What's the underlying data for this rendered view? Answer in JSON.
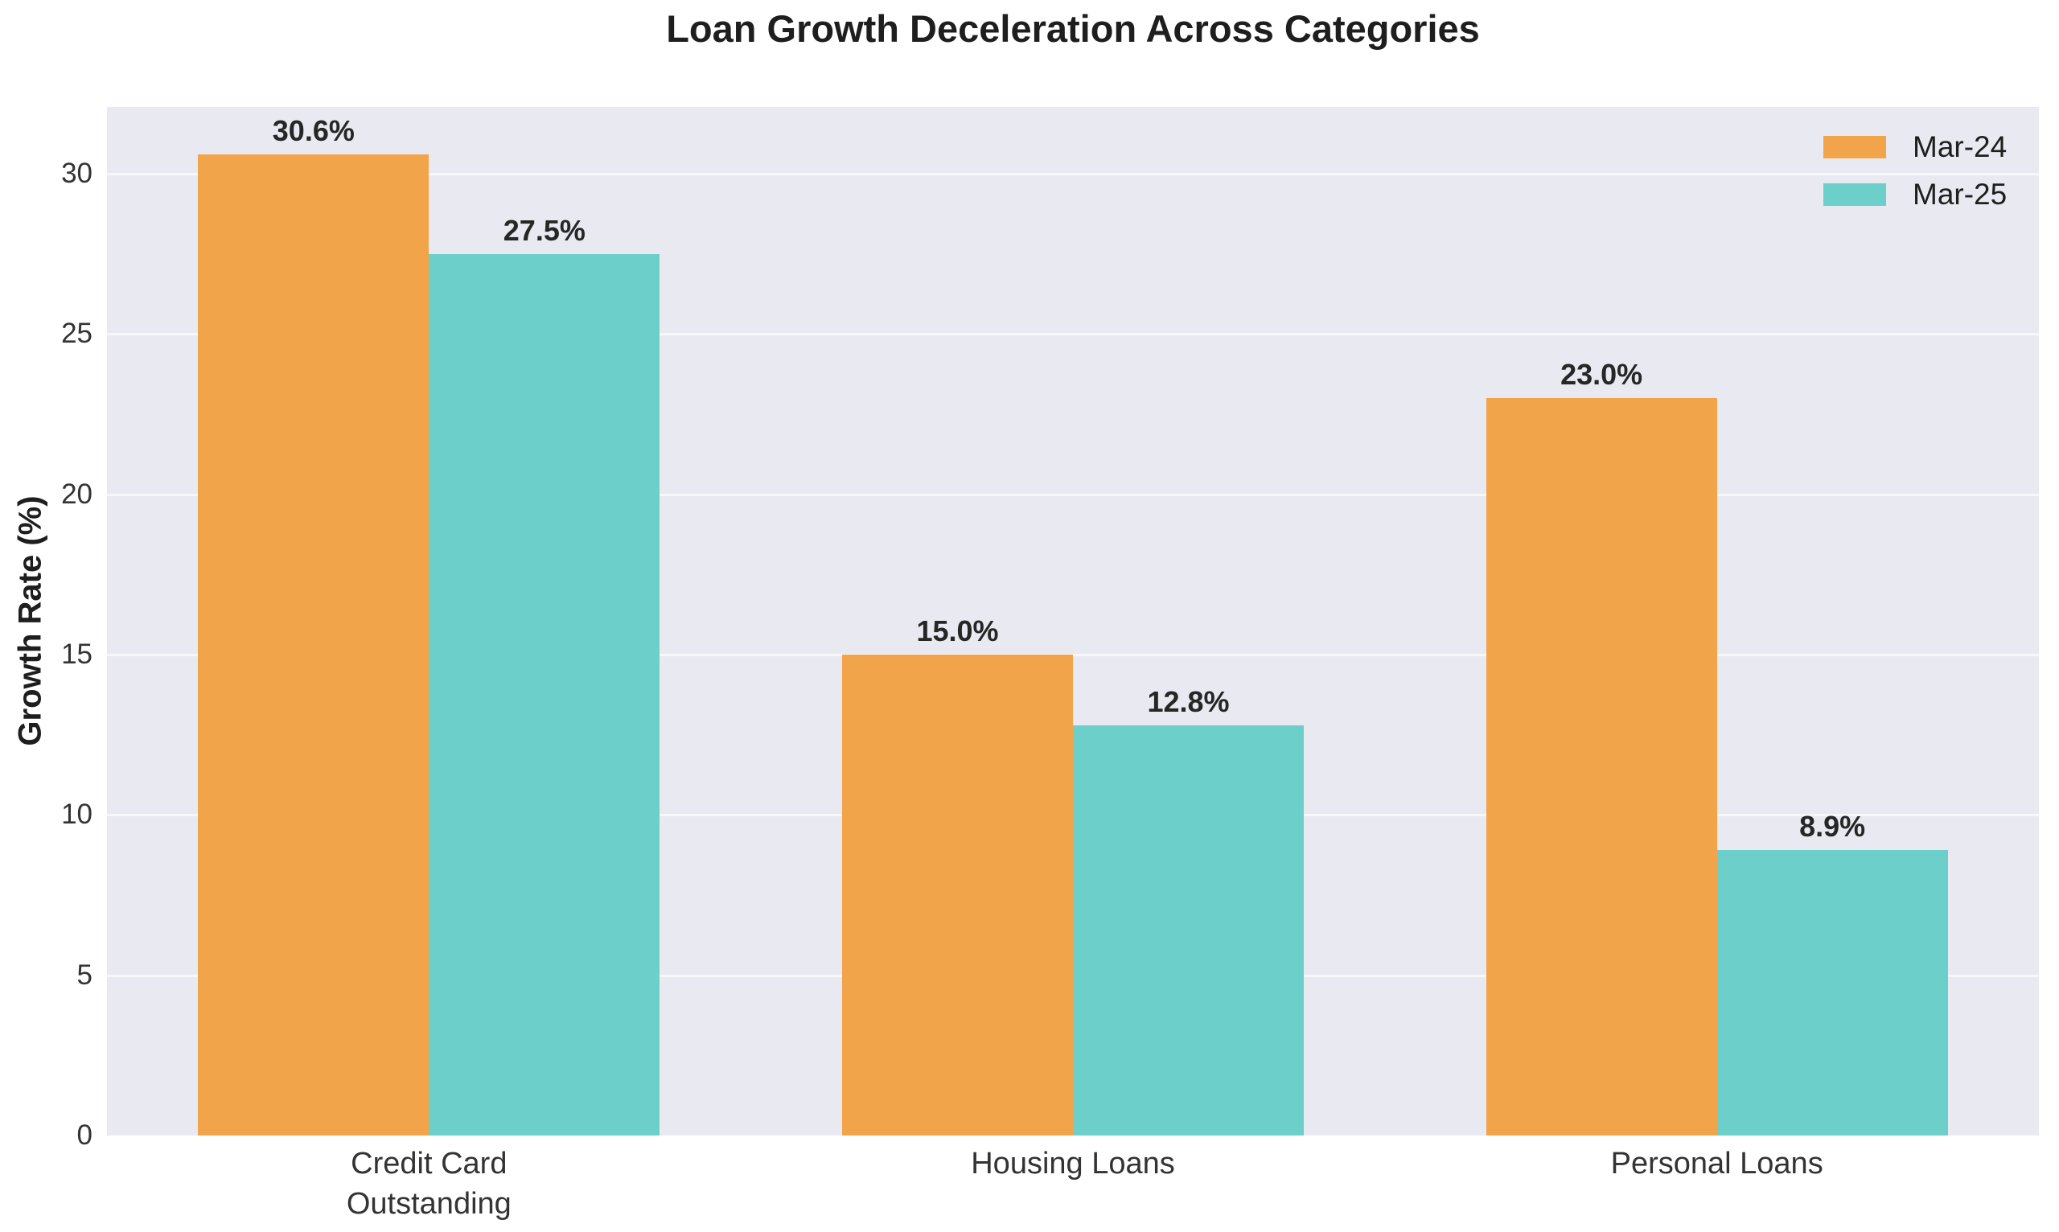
{
  "title": "Loan Growth Deceleration Across Categories",
  "chart_data": {
    "type": "bar",
    "title": "Loan Growth Deceleration Across Categories",
    "categories": [
      "Credit Card Outstanding",
      "Housing Loans",
      "Personal Loans"
    ],
    "category_lines": [
      [
        "Credit Card",
        "Outstanding"
      ],
      [
        "Housing Loans"
      ],
      [
        "Personal Loans"
      ]
    ],
    "series": [
      {
        "name": "Mar-24",
        "color": "#F2A44B",
        "values": [
          30.6,
          15.0,
          23.0
        ],
        "labels": [
          "30.6%",
          "15.0%",
          "23.0%"
        ]
      },
      {
        "name": "Mar-25",
        "color": "#6DCFC9",
        "values": [
          27.5,
          12.8,
          8.9
        ],
        "labels": [
          "27.5%",
          "12.8%",
          "8.9%"
        ]
      }
    ],
    "xlabel": "",
    "ylabel": "Growth Rate (%)",
    "yticks": [
      0,
      5,
      10,
      15,
      20,
      25,
      30
    ],
    "ylim": [
      0,
      32.1
    ],
    "grid": true,
    "grid_axis": "y",
    "legend_position": "upper right"
  },
  "colors": {
    "plot_background": "#E9EAF1",
    "gridline": "#F7F7FA",
    "title_text": "#1E1E1E",
    "tick_text": "#333333",
    "value_label_text": "#262626",
    "series_mar_24": "#F2A44B",
    "series_mar_25": "#6DCFC9"
  }
}
